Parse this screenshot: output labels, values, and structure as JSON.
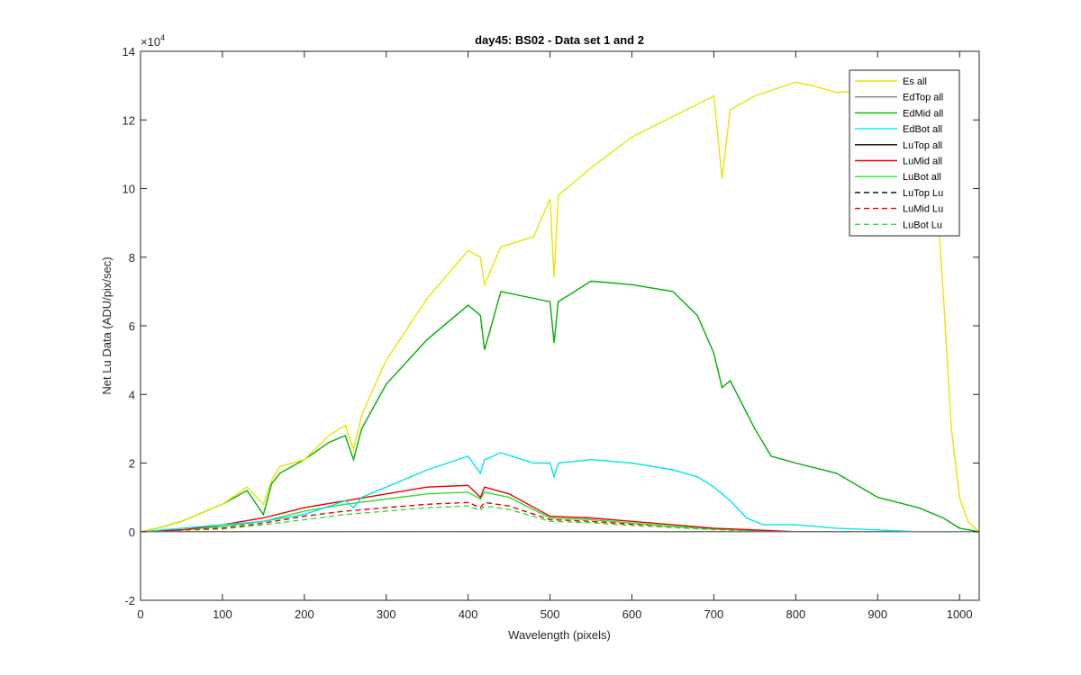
{
  "chart_data": {
    "type": "line",
    "title": "day45: BS02 - Data set 1 and 2",
    "xlabel": "Wavelength (pixels)",
    "ylabel": "Net Lu Data (ADU/pix/sec)",
    "y_exponent_base": "×10",
    "y_exponent_power": "4",
    "xlim": [
      0,
      1024
    ],
    "ylim": [
      -2,
      14
    ],
    "x_ticks": [
      0,
      100,
      200,
      300,
      400,
      500,
      600,
      700,
      800,
      900,
      1000
    ],
    "y_ticks": [
      -2,
      0,
      2,
      4,
      6,
      8,
      10,
      12,
      14
    ],
    "grid": false,
    "legend_position": "top-right",
    "series": [
      {
        "name": "Es  all",
        "color": "#e6e600",
        "dash": "solid",
        "x": [
          0,
          20,
          50,
          100,
          130,
          150,
          160,
          170,
          200,
          230,
          250,
          260,
          270,
          300,
          350,
          400,
          415,
          420,
          440,
          480,
          500,
          505,
          510,
          550,
          600,
          650,
          700,
          710,
          720,
          750,
          800,
          820,
          850,
          900,
          950,
          970,
          980,
          985,
          990,
          1000,
          1010,
          1024
        ],
        "y": [
          0,
          0.1,
          0.3,
          0.8,
          1.3,
          0.8,
          1.5,
          1.9,
          2.1,
          2.8,
          3.1,
          2.4,
          3.4,
          5.0,
          6.8,
          8.2,
          8.0,
          7.2,
          8.3,
          8.6,
          9.7,
          7.4,
          9.8,
          10.6,
          11.5,
          12.1,
          12.7,
          10.3,
          12.3,
          12.7,
          13.1,
          13.0,
          12.8,
          12.9,
          12.8,
          10.5,
          7.0,
          5.0,
          3.0,
          1.0,
          0.3,
          0.0
        ]
      },
      {
        "name": "EdTop  all",
        "color": "#808080",
        "dash": "solid",
        "x": [
          0,
          1024
        ],
        "y": [
          0.0,
          0.0
        ]
      },
      {
        "name": "EdMid  all",
        "color": "#00b000",
        "dash": "solid",
        "x": [
          0,
          20,
          50,
          100,
          130,
          150,
          160,
          170,
          200,
          230,
          250,
          260,
          270,
          300,
          350,
          400,
          415,
          420,
          440,
          480,
          500,
          505,
          510,
          550,
          600,
          650,
          680,
          700,
          710,
          720,
          750,
          770,
          800,
          850,
          900,
          950,
          980,
          1000,
          1024
        ],
        "y": [
          0,
          0.1,
          0.3,
          0.8,
          1.2,
          0.5,
          1.4,
          1.7,
          2.1,
          2.6,
          2.8,
          2.1,
          3.0,
          4.3,
          5.6,
          6.6,
          6.3,
          5.3,
          7.0,
          6.8,
          6.7,
          5.5,
          6.7,
          7.3,
          7.2,
          7.0,
          6.3,
          5.2,
          4.2,
          4.4,
          3.0,
          2.2,
          2.0,
          1.7,
          1.0,
          0.7,
          0.4,
          0.1,
          0.0
        ]
      },
      {
        "name": "EdBot  all",
        "color": "#00e6e6",
        "dash": "solid",
        "x": [
          0,
          50,
          100,
          150,
          200,
          250,
          260,
          270,
          300,
          350,
          400,
          415,
          420,
          440,
          480,
          500,
          505,
          510,
          550,
          600,
          650,
          680,
          700,
          720,
          740,
          760,
          800,
          850,
          900,
          950,
          1000,
          1024
        ],
        "y": [
          0,
          0.1,
          0.2,
          0.3,
          0.5,
          0.9,
          0.7,
          1.0,
          1.3,
          1.8,
          2.2,
          1.7,
          2.1,
          2.3,
          2.0,
          2.0,
          1.6,
          2.0,
          2.1,
          2.0,
          1.8,
          1.6,
          1.3,
          0.9,
          0.4,
          0.2,
          0.2,
          0.1,
          0.05,
          0.0,
          0.0,
          0.0
        ]
      },
      {
        "name": "LuTop  all",
        "color": "#000000",
        "dash": "solid",
        "x": [
          0,
          1024
        ],
        "y": [
          0.0,
          0.0
        ]
      },
      {
        "name": "LuMid  all",
        "color": "#e60000",
        "dash": "solid",
        "x": [
          0,
          50,
          100,
          150,
          200,
          250,
          300,
          350,
          400,
          415,
          420,
          450,
          500,
          550,
          600,
          650,
          700,
          750,
          800,
          900,
          1024
        ],
        "y": [
          0,
          0.05,
          0.2,
          0.4,
          0.7,
          0.9,
          1.1,
          1.3,
          1.35,
          1.0,
          1.3,
          1.1,
          0.45,
          0.4,
          0.3,
          0.2,
          0.1,
          0.05,
          0.0,
          0.0,
          0.0
        ]
      },
      {
        "name": "LuBot  all",
        "color": "#33dd33",
        "dash": "solid",
        "x": [
          0,
          50,
          100,
          150,
          200,
          250,
          300,
          350,
          400,
          415,
          420,
          450,
          500,
          550,
          600,
          650,
          700,
          750,
          800,
          900,
          1024
        ],
        "y": [
          0,
          0.05,
          0.15,
          0.3,
          0.6,
          0.8,
          0.95,
          1.1,
          1.15,
          0.95,
          1.15,
          1.0,
          0.4,
          0.35,
          0.25,
          0.15,
          0.08,
          0.03,
          0.0,
          0.0,
          0.0
        ]
      },
      {
        "name": "LuTop  Lu",
        "color": "#000000",
        "dash": "dashed",
        "x": [
          0,
          1024
        ],
        "y": [
          0.0,
          0.0
        ]
      },
      {
        "name": "LuMid  Lu",
        "color": "#e60000",
        "dash": "dashed",
        "x": [
          0,
          50,
          100,
          150,
          200,
          250,
          300,
          350,
          400,
          415,
          420,
          450,
          500,
          550,
          600,
          650,
          700,
          750,
          800,
          900,
          1024
        ],
        "y": [
          0,
          0.05,
          0.1,
          0.25,
          0.45,
          0.6,
          0.7,
          0.8,
          0.85,
          0.7,
          0.85,
          0.75,
          0.35,
          0.3,
          0.22,
          0.15,
          0.08,
          0.03,
          0.0,
          0.0,
          0.0
        ]
      },
      {
        "name": "LuBot  Lu",
        "color": "#33dd33",
        "dash": "dashed",
        "x": [
          0,
          50,
          100,
          150,
          200,
          250,
          300,
          350,
          400,
          415,
          420,
          450,
          500,
          550,
          600,
          650,
          700,
          750,
          800,
          900,
          1024
        ],
        "y": [
          0,
          0.04,
          0.08,
          0.2,
          0.35,
          0.5,
          0.6,
          0.7,
          0.75,
          0.62,
          0.75,
          0.65,
          0.3,
          0.26,
          0.18,
          0.12,
          0.06,
          0.02,
          0.0,
          0.0,
          0.0
        ]
      }
    ]
  }
}
